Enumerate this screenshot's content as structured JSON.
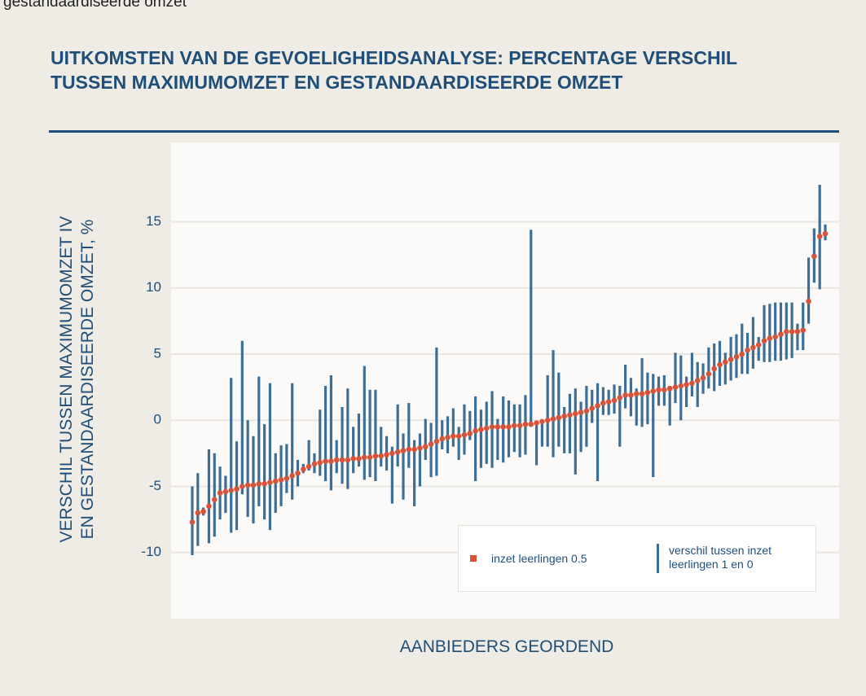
{
  "caption": "gestandaardiseerde omzet",
  "chart_data": {
    "type": "dot_range",
    "title": "UITKOMSTEN VAN DE GEVOELIGHEIDSANALYSE: PERCENTAGE VERSCHIL\nTUSSEN MAXIMUMOMZET EN GESTANDAARDISEERDE OMZET",
    "y_label": "VERSCHIL TUSSEN MAXIMUMOMZET IV\nEN GESTANDAARDISEERDE OMZET, %",
    "x_label": "AANBIEDERS GEORDEND",
    "ylim": [
      -15,
      21
    ],
    "yticks": [
      -10,
      -5,
      0,
      5,
      10,
      15
    ],
    "grid": true,
    "series": [
      {
        "name": "inzet leerlingen 0.5",
        "color": "#d9533a",
        "values": [
          -7.7,
          -7.0,
          -6.9,
          -6.5,
          -6.0,
          -5.5,
          -5.4,
          -5.3,
          -5.2,
          -5.0,
          -4.9,
          -4.9,
          -4.8,
          -4.8,
          -4.7,
          -4.6,
          -4.5,
          -4.4,
          -4.2,
          -4.0,
          -3.7,
          -3.5,
          -3.3,
          -3.2,
          -3.1,
          -3.1,
          -3.0,
          -3.0,
          -3.0,
          -2.9,
          -2.9,
          -2.8,
          -2.8,
          -2.7,
          -2.7,
          -2.6,
          -2.5,
          -2.4,
          -2.3,
          -2.2,
          -2.2,
          -2.1,
          -2.0,
          -1.8,
          -1.6,
          -1.4,
          -1.3,
          -1.2,
          -1.2,
          -1.1,
          -1.0,
          -0.8,
          -0.7,
          -0.6,
          -0.5,
          -0.5,
          -0.5,
          -0.5,
          -0.4,
          -0.4,
          -0.3,
          -0.3,
          -0.2,
          -0.1,
          0.0,
          0.1,
          0.2,
          0.3,
          0.4,
          0.5,
          0.6,
          0.7,
          0.9,
          1.1,
          1.3,
          1.4,
          1.5,
          1.7,
          1.9,
          1.9,
          2.0,
          2.0,
          2.1,
          2.2,
          2.3,
          2.3,
          2.4,
          2.5,
          2.6,
          2.7,
          2.8,
          3.0,
          3.2,
          3.5,
          3.9,
          4.2,
          4.4,
          4.6,
          4.8,
          5.0,
          5.3,
          5.5,
          5.7,
          6.0,
          6.2,
          6.3,
          6.5,
          6.7,
          6.7,
          6.7,
          6.8,
          9.0,
          12.4,
          13.9,
          14.1
        ]
      }
    ],
    "ranges": {
      "name": "verschil tussen inzet\nleerlingen 1 en 0",
      "color": "#3d6e96",
      "low": [
        -10.2,
        -9.5,
        -7.2,
        -9.3,
        -8.8,
        -7.5,
        -7.0,
        -8.5,
        -8.3,
        -5.6,
        -7.3,
        -7.8,
        -6.5,
        -7.5,
        -8.3,
        -7.0,
        -6.5,
        -5.5,
        -6.0,
        -5.0,
        -4.0,
        -3.8,
        -4.0,
        -4.2,
        -4.6,
        -5.3,
        -4.0,
        -4.8,
        -5.2,
        -4.0,
        -3.5,
        -4.5,
        -4.3,
        -4.6,
        -3.5,
        -3.8,
        -6.3,
        -3.5,
        -6.0,
        -3.6,
        -6.5,
        -5.0,
        -3.0,
        -4.3,
        -4.2,
        -2.2,
        -2.5,
        -2.0,
        -3.0,
        -2.6,
        -1.5,
        -4.6,
        -3.6,
        -3.3,
        -3.6,
        -3.0,
        -3.2,
        -2.8,
        -2.4,
        -2.8,
        -2.6,
        -0.5,
        -3.4,
        -2.0,
        -2.0,
        -2.8,
        -2.0,
        -2.5,
        -2.5,
        -4.1,
        -2.4,
        -2.0,
        -0.2,
        -4.6,
        0.4,
        0.4,
        0.5,
        -2.0,
        0.9,
        0.3,
        -0.4,
        -0.5,
        -0.3,
        -4.3,
        1.1,
        1.1,
        -0.4,
        1.3,
        0.0,
        1.0,
        1.8,
        1.0,
        2.0,
        2.4,
        2.2,
        2.6,
        2.7,
        3.0,
        3.2,
        3.5,
        3.5,
        3.9,
        4.5,
        4.4,
        4.4,
        4.5,
        4.5,
        4.6,
        4.7,
        5.3,
        5.3,
        7.3,
        10.4,
        9.9,
        13.6
      ],
      "high": [
        -5.0,
        -4.0,
        -6.6,
        -2.2,
        -2.5,
        -3.5,
        -4.2,
        3.2,
        -1.6,
        6.0,
        0.0,
        -1.2,
        3.3,
        -0.3,
        2.8,
        -2.5,
        -1.9,
        -1.8,
        2.8,
        -3.0,
        -3.3,
        -1.5,
        -2.5,
        0.8,
        2.6,
        3.4,
        -1.5,
        1.0,
        2.4,
        -0.5,
        0.5,
        4.1,
        2.3,
        2.3,
        -0.5,
        -1.2,
        -2.0,
        1.2,
        -1.0,
        1.3,
        -1.5,
        -1.0,
        0.1,
        -0.2,
        5.5,
        0.0,
        0.3,
        0.9,
        -0.5,
        1.2,
        0.7,
        1.8,
        0.8,
        1.4,
        2.2,
        0.1,
        1.8,
        1.5,
        1.2,
        1.2,
        1.9,
        14.4,
        -0.2,
        0.0,
        3.4,
        5.3,
        3.6,
        1.0,
        2.0,
        2.4,
        1.4,
        2.6,
        2.3,
        2.8,
        2.5,
        2.3,
        2.7,
        2.6,
        4.2,
        3.2,
        2.4,
        4.7,
        3.6,
        3.5,
        3.3,
        3.4,
        2.6,
        5.1,
        4.9,
        3.3,
        5.1,
        4.4,
        4.3,
        5.5,
        5.8,
        6.0,
        5.1,
        6.3,
        6.5,
        7.3,
        6.6,
        7.8,
        6.3,
        8.7,
        8.8,
        8.9,
        8.9,
        8.9,
        8.9,
        7.3,
        8.9,
        12.3,
        14.5,
        17.8,
        14.8
      ]
    }
  }
}
